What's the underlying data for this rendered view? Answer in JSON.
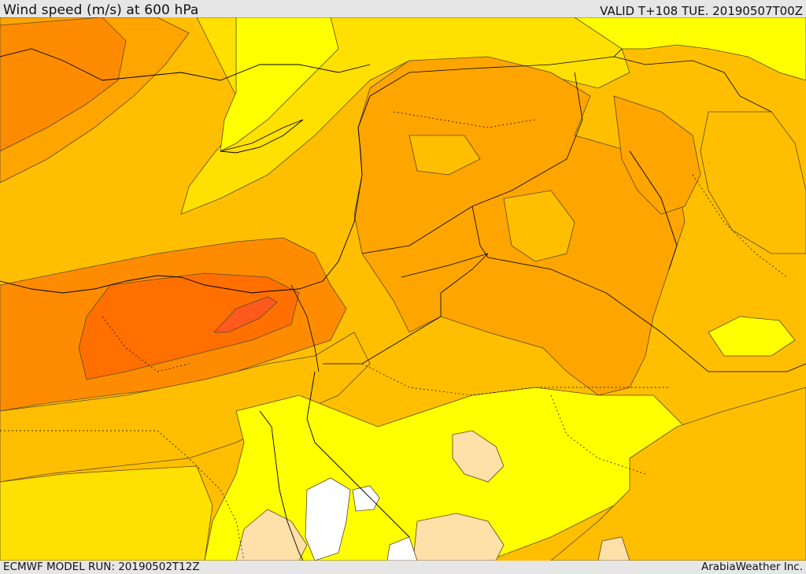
{
  "header": {
    "title": "Wind speed (m/s) at 600 hPa",
    "valid": "VALID T+108 TUE. 20190507T00Z"
  },
  "footer": {
    "model_run": "ECMWF MODEL RUN: 20190502T12Z",
    "credit": "ArabiaWeather Inc."
  },
  "colors": {
    "white": "#ffffff",
    "peach": "#fee0a8",
    "yellow": "#ffff00",
    "gold": "#ffe000",
    "amber": "#ffbf00",
    "orange_light": "#ffa500",
    "orange": "#ff8c00",
    "orange_dark": "#ff7000",
    "red_orange": "#ff5a1e",
    "contour": "#5a4a2a",
    "border": "#000000"
  },
  "icons": {
    "map": "wind-speed-map",
    "coastline": "coastline-lines",
    "borders": "country-border-lines"
  }
}
